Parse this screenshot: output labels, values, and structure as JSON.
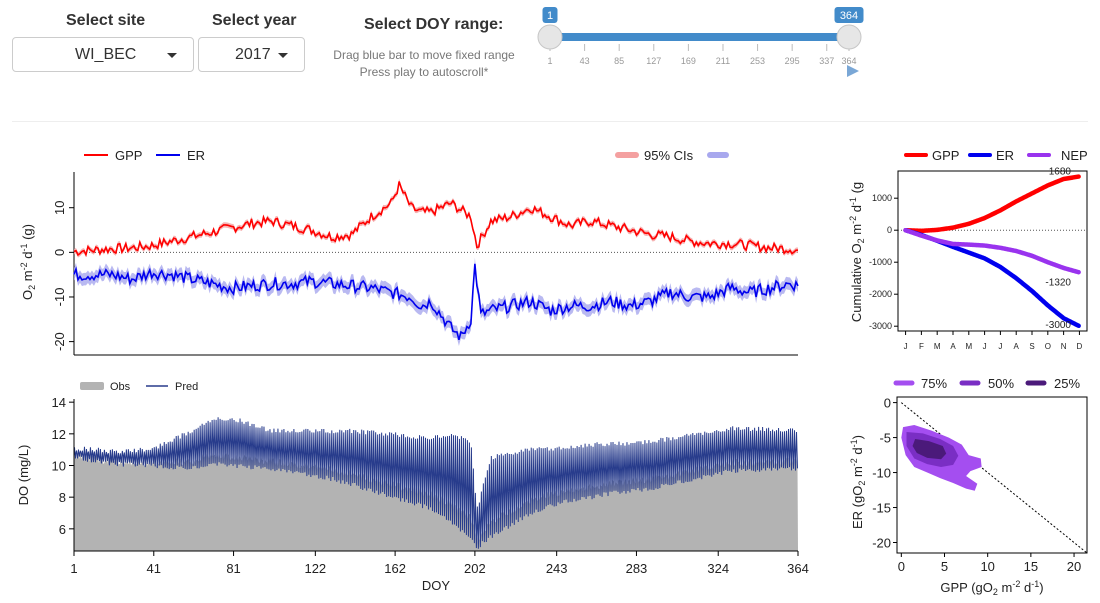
{
  "controls": {
    "site_label": "Select site",
    "site_value": "WI_BEC",
    "year_label": "Select year",
    "year_value": "2017",
    "doy_label": "Select DOY range:",
    "hint_line1": "Drag blue bar to move fixed range",
    "hint_line2": "Press play to autoscroll*",
    "slider": {
      "min": 1,
      "max": 364,
      "from": 1,
      "to": 364,
      "from_label": "1",
      "to_label": "364",
      "ticks": [
        "1",
        "43",
        "85",
        "127",
        "169",
        "211",
        "253",
        "295",
        "337",
        "364"
      ],
      "tick_values": [
        1,
        43,
        85,
        127,
        169,
        211,
        253,
        295,
        337,
        364
      ],
      "color": "#428bca",
      "play_icon": "play-icon"
    }
  },
  "chart_data": [
    {
      "id": "metabolism",
      "type": "line",
      "legend": {
        "gpp": "GPP",
        "er": "ER",
        "ci": "95% CIs"
      },
      "ylabel": "O₂ m⁻² d⁻¹ (g)",
      "ylabel_parts": {
        "base": "O",
        "sub": "2",
        "m": " m",
        "e1": "-2",
        "d": " d",
        "e2": "-1",
        "unit": " (g)"
      },
      "ylim": [
        -23,
        18
      ],
      "xlim": [
        1,
        364
      ],
      "yticks": [
        10,
        0,
        -10,
        -20
      ],
      "ytick_labels": [
        "10",
        "0",
        "-10",
        "-20"
      ],
      "colors": {
        "gpp": "#ff0000",
        "er": "#0000ee",
        "gpp_ci": "#f4a0a0",
        "er_ci": "#a8a8ee"
      },
      "series": [
        {
          "name": "GPP",
          "x": [
            1,
            10,
            20,
            30,
            40,
            50,
            60,
            70,
            80,
            90,
            100,
            110,
            120,
            130,
            140,
            150,
            160,
            164,
            170,
            175,
            180,
            190,
            200,
            203,
            210,
            220,
            230,
            240,
            250,
            260,
            270,
            280,
            290,
            300,
            310,
            320,
            330,
            340,
            350,
            360,
            364
          ],
          "y": [
            0.2,
            0.5,
            0.8,
            1,
            1.5,
            2.5,
            3.5,
            4.5,
            5.5,
            6.5,
            7,
            6,
            5,
            3.5,
            4,
            8,
            11,
            15,
            10,
            9,
            9,
            11,
            8,
            1.5,
            7,
            8,
            10,
            8,
            6,
            7,
            6,
            5,
            4,
            3.5,
            2.5,
            2,
            2,
            1.5,
            1,
            0.8,
            0.4
          ]
        },
        {
          "name": "ER",
          "x": [
            1,
            10,
            20,
            30,
            40,
            50,
            60,
            70,
            80,
            90,
            100,
            110,
            120,
            130,
            140,
            150,
            160,
            170,
            175,
            180,
            190,
            195,
            200,
            202,
            205,
            210,
            220,
            230,
            240,
            250,
            260,
            270,
            280,
            290,
            300,
            310,
            320,
            330,
            340,
            350,
            360,
            364
          ],
          "y": [
            -5,
            -5,
            -5,
            -6,
            -4.5,
            -5,
            -6,
            -7,
            -8,
            -7.5,
            -7,
            -7,
            -6.5,
            -7,
            -7.5,
            -8,
            -9,
            -10,
            -12,
            -11,
            -17,
            -19,
            -15,
            -3,
            -14,
            -13,
            -12,
            -11,
            -13,
            -12,
            -12,
            -11,
            -12,
            -11,
            -9,
            -10,
            -10,
            -8,
            -9,
            -8,
            -7,
            -7.5
          ]
        }
      ]
    },
    {
      "id": "cumulative",
      "type": "line",
      "legend": {
        "gpp": "GPP",
        "er": "ER",
        "nep": "NEP"
      },
      "ylabel": "Cumulative O₂ m⁻² d⁻¹ (g",
      "ylabel_parts": {
        "base": "Cumulative O",
        "sub": "2",
        "m": " m",
        "e1": "-2",
        "d": " d",
        "e2": "-1",
        "unit": " (g"
      },
      "ylim": [
        -3150,
        1850
      ],
      "xlim": [
        1,
        12
      ],
      "yticks": [
        1000,
        0,
        -1000,
        -2000,
        -3000
      ],
      "ytick_labels": [
        "1000",
        "0",
        "-1000",
        "-2000",
        "-3000"
      ],
      "xtick_labels": [
        "J",
        "F",
        "M",
        "A",
        "M",
        "J",
        "J",
        "A",
        "S",
        "O",
        "N",
        "D"
      ],
      "colors": {
        "gpp": "#ff0000",
        "er": "#0000ee",
        "nep": "#9933ee"
      },
      "end_labels": {
        "gpp": "1680",
        "nep": "-1320",
        "er": "-3000"
      },
      "series": [
        {
          "name": "GPP",
          "x": [
            1,
            2,
            3,
            4,
            5,
            6,
            7,
            8,
            9,
            10,
            11,
            12
          ],
          "y": [
            0,
            -20,
            10,
            80,
            200,
            380,
            620,
            900,
            1150,
            1400,
            1600,
            1680
          ]
        },
        {
          "name": "ER",
          "x": [
            1,
            2,
            3,
            4,
            5,
            6,
            7,
            8,
            9,
            10,
            11,
            12
          ],
          "y": [
            0,
            -150,
            -330,
            -520,
            -700,
            -880,
            -1150,
            -1500,
            -1900,
            -2350,
            -2750,
            -3000
          ]
        },
        {
          "name": "NEP",
          "x": [
            1,
            2,
            3,
            4,
            5,
            6,
            7,
            8,
            9,
            10,
            11,
            12
          ],
          "y": [
            0,
            -170,
            -320,
            -430,
            -450,
            -480,
            -550,
            -650,
            -800,
            -1000,
            -1180,
            -1320
          ]
        }
      ]
    },
    {
      "id": "do",
      "type": "area",
      "legend": {
        "obs": "Obs",
        "pred": "Pred"
      },
      "ylabel": "DO (mg/L)",
      "xlabel": "DOY",
      "ylim": [
        4.6,
        14.2
      ],
      "xlim": [
        1,
        364
      ],
      "yticks": [
        14,
        12,
        10,
        8,
        6
      ],
      "ytick_labels": [
        "14",
        "12",
        "10",
        "8",
        "6"
      ],
      "xticks": [
        1,
        41,
        81,
        122,
        162,
        202,
        243,
        283,
        324,
        364
      ],
      "xtick_labels": [
        "1",
        "41",
        "81",
        "122",
        "162",
        "202",
        "243",
        "283",
        "324",
        "364"
      ],
      "colors": {
        "obs": "#b3b3b3",
        "pred": "#283c8c"
      },
      "mean_x": [
        1,
        20,
        40,
        60,
        70,
        80,
        100,
        120,
        140,
        160,
        180,
        190,
        200,
        203,
        210,
        230,
        250,
        270,
        290,
        310,
        330,
        350,
        364
      ],
      "mean_y": [
        10.8,
        10.5,
        10.5,
        11,
        11.5,
        11.5,
        11,
        10.8,
        10.5,
        10,
        9.5,
        9.2,
        8.5,
        6,
        8,
        9,
        9.5,
        9.8,
        10,
        10.5,
        11,
        11,
        11
      ],
      "amp_x": [
        1,
        40,
        60,
        80,
        100,
        130,
        160,
        180,
        190,
        200,
        203,
        210,
        240,
        280,
        320,
        364
      ],
      "amp_y": [
        0.3,
        0.5,
        1.2,
        1.5,
        1.2,
        1.5,
        2,
        2.2,
        2.8,
        3,
        1.2,
        2.5,
        1.8,
        1.5,
        1.4,
        1.2
      ]
    },
    {
      "id": "kde",
      "type": "scatter",
      "legend": [
        "75%",
        "50%",
        "25%"
      ],
      "xlabel": "GPP (gO₂ m⁻² d⁻¹)",
      "xlabel_parts": {
        "base": "GPP (gO",
        "sub": "2",
        "m": " m",
        "e1": "-2",
        "d": " d",
        "e2": "-1",
        "end": ")"
      },
      "ylabel": "ER (gO₂ m⁻² d⁻¹)",
      "ylabel_parts": {
        "base": "ER (gO",
        "sub": "2",
        "m": " m",
        "e1": "-2",
        "d": " d",
        "e2": "-1",
        "end": ")"
      },
      "xlim": [
        -0.5,
        21.5
      ],
      "ylim": [
        -21.5,
        0.8
      ],
      "xticks": [
        0,
        5,
        10,
        15,
        20
      ],
      "xtick_labels": [
        "0",
        "5",
        "10",
        "15",
        "20"
      ],
      "yticks": [
        0,
        -5,
        -10,
        -15,
        -20
      ],
      "ytick_labels": [
        "0",
        "-5",
        "-10",
        "-15",
        "-20"
      ],
      "colors": {
        "p75": "#a44ef0",
        "p50": "#7a2ec4",
        "p25": "#4b1a7a"
      },
      "contours": {
        "p75": [
          [
            0.2,
            -3.5
          ],
          [
            1.5,
            -3.2
          ],
          [
            3.5,
            -4
          ],
          [
            5.5,
            -5
          ],
          [
            7,
            -6
          ],
          [
            7.8,
            -7.5
          ],
          [
            9.2,
            -8
          ],
          [
            9.3,
            -9.2
          ],
          [
            8,
            -9.8
          ],
          [
            7.5,
            -10.5
          ],
          [
            8.8,
            -11.6
          ],
          [
            8.5,
            -12.6
          ],
          [
            7.5,
            -12.3
          ],
          [
            6,
            -11.5
          ],
          [
            4.5,
            -10.8
          ],
          [
            3,
            -10
          ],
          [
            1.5,
            -9.2
          ],
          [
            0.5,
            -7.5
          ],
          [
            0,
            -5
          ]
        ],
        "p50": [
          [
            0.6,
            -4.2
          ],
          [
            2.5,
            -4.4
          ],
          [
            4.5,
            -5.2
          ],
          [
            6,
            -6.2
          ],
          [
            6.6,
            -7.6
          ],
          [
            6,
            -8.9
          ],
          [
            4.6,
            -9.2
          ],
          [
            3,
            -8.8
          ],
          [
            1.5,
            -8
          ],
          [
            0.6,
            -6.2
          ]
        ],
        "p25": [
          [
            1.6,
            -5.2
          ],
          [
            3.2,
            -5.5
          ],
          [
            4.8,
            -6.2
          ],
          [
            5.2,
            -7.3
          ],
          [
            4.6,
            -8.1
          ],
          [
            3,
            -7.9
          ],
          [
            1.8,
            -7.2
          ],
          [
            1.3,
            -6.2
          ]
        ]
      }
    }
  ]
}
